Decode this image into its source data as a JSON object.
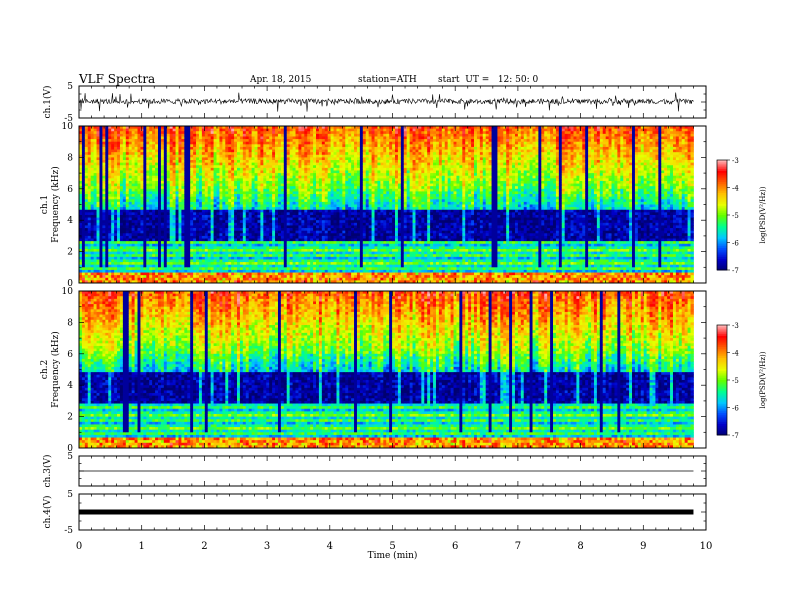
{
  "header": {
    "title": "VLF Spectra",
    "date": "Apr. 18, 2015",
    "station": "station=ATH",
    "start_time": "start  UT =   12: 50: 0"
  },
  "chart_data": {
    "type": "heatmap",
    "panels": [
      {
        "id": "ch1_waveform",
        "kind": "line",
        "ylabel": "ch.1(V)",
        "ylim": [
          -5,
          5
        ],
        "yticks": [
          "5",
          "-5"
        ],
        "baseline": 0,
        "description_values": "noisy waveform near 0 V with spikes up to about ±3 V"
      },
      {
        "id": "ch1_spectrogram",
        "kind": "heatmap",
        "ylabel_top": "ch.1",
        "ylabel": "Frequency (kHz)",
        "ylim": [
          0,
          10
        ],
        "yticks": [
          "0",
          "2",
          "4",
          "6",
          "8",
          "10"
        ],
        "colorbar": {
          "label": "log(PSD(V²/Hz))",
          "range": [
            -7,
            -3
          ],
          "ticks": [
            "-3",
            "-4",
            "-5",
            "-6",
            "-7"
          ]
        }
      },
      {
        "id": "ch2_spectrogram",
        "kind": "heatmap",
        "ylabel_top": "ch.2",
        "ylabel": "Frequency (kHz)",
        "ylim": [
          0,
          10
        ],
        "yticks": [
          "0",
          "2",
          "4",
          "6",
          "8",
          "10"
        ],
        "colorbar": {
          "label": "log(PSD(V²/Hz))",
          "range": [
            -7,
            -3
          ],
          "ticks": [
            "-3",
            "-4",
            "-5",
            "-6",
            "-7"
          ]
        }
      },
      {
        "id": "ch3_waveform",
        "kind": "line",
        "ylabel": "ch.3(V)",
        "ylim": [
          -5,
          5
        ],
        "yticks": [
          "5"
        ],
        "baseline": 0
      },
      {
        "id": "ch4_waveform",
        "kind": "line",
        "ylabel": "ch.4(V)",
        "ylim": [
          -5,
          5
        ],
        "yticks": [
          "5",
          "-5"
        ],
        "baseline": 0
      }
    ],
    "xlabel": "Time  (min)",
    "xlim": [
      0,
      10
    ],
    "xticks": [
      "0",
      "1",
      "2",
      "3",
      "4",
      "5",
      "6",
      "7",
      "8",
      "9",
      "10"
    ],
    "data_end_min": 9.8,
    "colormap": [
      "#000070",
      "#0000c8",
      "#0050ff",
      "#00c8ff",
      "#00ff90",
      "#60ff00",
      "#e8ff00",
      "#ffc000",
      "#ff6000",
      "#ff0000",
      "#ffb0b0"
    ]
  }
}
